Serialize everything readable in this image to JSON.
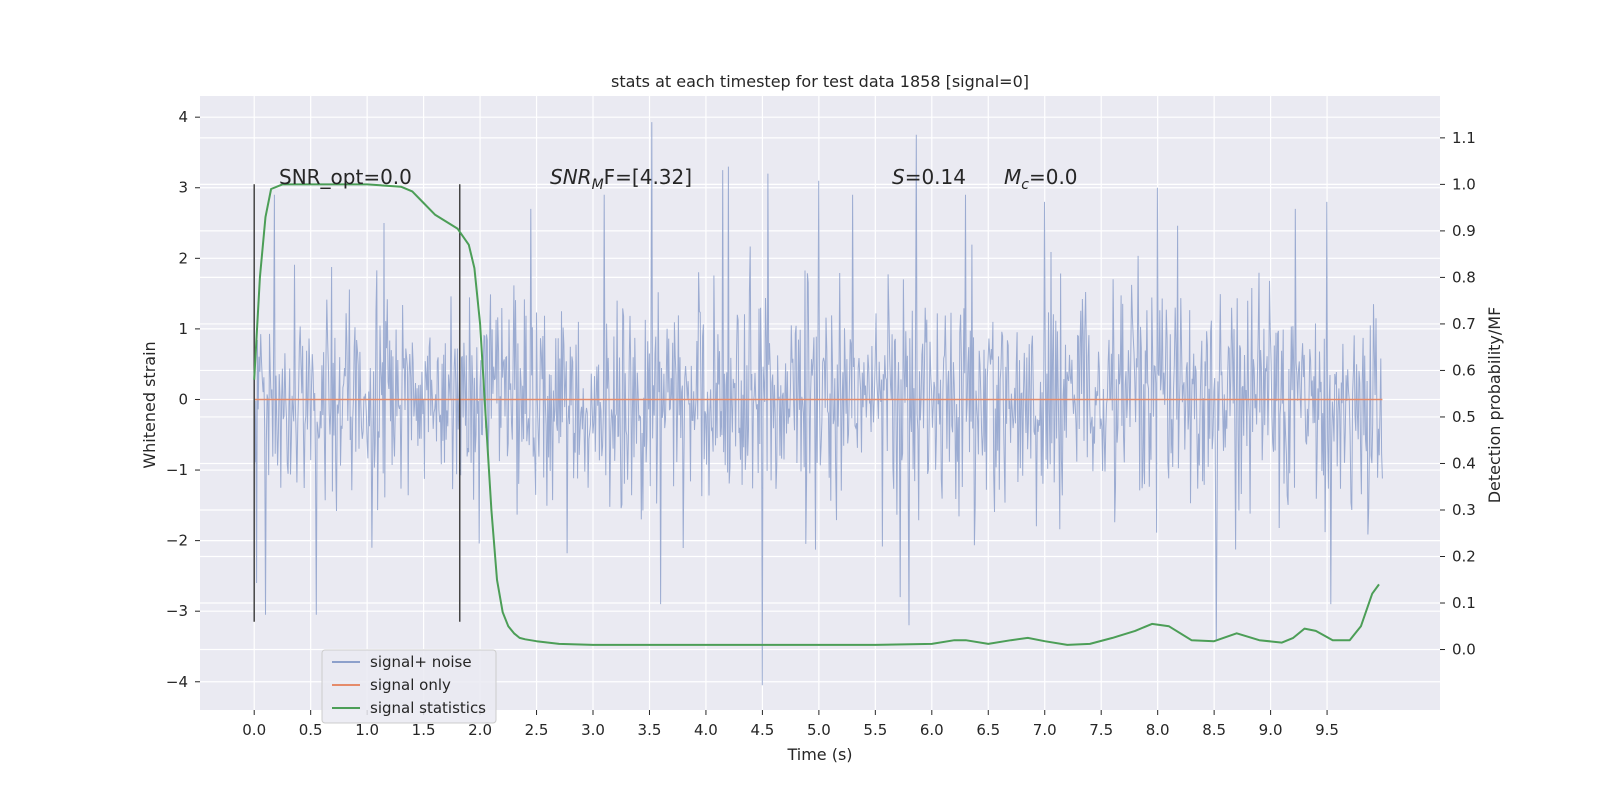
{
  "chart_data": {
    "type": "line",
    "title": "stats at each timestep for test data 1858 [signal=0]",
    "xlabel": "Time (s)",
    "ylabel_left": "Whitened strain",
    "ylabel_right": "Detection probability/MF",
    "xlim": [
      -0.48,
      10.5
    ],
    "ylim_left": [
      -4.4,
      4.3
    ],
    "ylim_right": [
      -0.13,
      1.19
    ],
    "xticks": [
      "0.0",
      "0.5",
      "1.0",
      "1.5",
      "2.0",
      "2.5",
      "3.0",
      "3.5",
      "4.0",
      "4.5",
      "5.0",
      "5.5",
      "6.0",
      "6.5",
      "7.0",
      "7.5",
      "8.0",
      "8.5",
      "9.0",
      "9.5"
    ],
    "yticks_left": [
      "4",
      "3",
      "2",
      "1",
      "0",
      "−1",
      "−2",
      "−3",
      "−4"
    ],
    "yticks_right": [
      "1.1",
      "1.0",
      "0.9",
      "0.8",
      "0.7",
      "0.6",
      "0.5",
      "0.4",
      "0.3",
      "0.2",
      "0.1",
      "0.0"
    ],
    "grid": true,
    "legend_position": "lower-left",
    "annotations": {
      "snr_opt": "SNR_opt=0.0",
      "snr_mf_base": "SNR",
      "snr_mf_sub": "M",
      "snr_mf_rest": "F=[4.32]",
      "s_var": "S",
      "s_value": "=0.14",
      "mc_var": "M",
      "mc_sub": "c",
      "mc_value": "=0.0"
    },
    "vertical_markers": {
      "x": [
        0.0,
        1.82
      ],
      "y_range": [
        -3.15,
        3.05
      ]
    },
    "series": [
      {
        "name": "signal+ noise",
        "axis": "left",
        "color": "#8da0cb",
        "x_range": [
          0.0,
          9.99
        ],
        "typical_range": [
          -1.3,
          1.2
        ],
        "outliers": [
          [
            0.02,
            -2.6
          ],
          [
            0.1,
            -3.05
          ],
          [
            0.18,
            2.9
          ],
          [
            0.55,
            -3.05
          ],
          [
            1.15,
            2.5
          ],
          [
            2.45,
            2.7
          ],
          [
            3.1,
            2.9
          ],
          [
            3.52,
            3.93
          ],
          [
            3.6,
            -2.9
          ],
          [
            4.15,
            3.25
          ],
          [
            4.2,
            3.3
          ],
          [
            4.55,
            3.2
          ],
          [
            4.5,
            -4.05
          ],
          [
            5.0,
            3.1
          ],
          [
            5.3,
            2.9
          ],
          [
            5.72,
            -2.8
          ],
          [
            5.86,
            3.75
          ],
          [
            5.8,
            -3.2
          ],
          [
            6.3,
            2.9
          ],
          [
            7.0,
            2.8
          ],
          [
            8.0,
            3.0
          ],
          [
            8.52,
            -3.4
          ],
          [
            9.22,
            2.7
          ],
          [
            9.5,
            2.8
          ],
          [
            9.53,
            -2.9
          ]
        ]
      },
      {
        "name": "signal only",
        "axis": "left",
        "color": "#e58b6a",
        "x": [
          0.0,
          9.99
        ],
        "y": [
          0.0,
          0.0
        ]
      },
      {
        "name": "signal statistics",
        "axis": "right",
        "color": "#4c9e57",
        "x": [
          0.0,
          0.05,
          0.1,
          0.15,
          0.25,
          0.5,
          0.8,
          1.0,
          1.3,
          1.4,
          1.5,
          1.6,
          1.7,
          1.8,
          1.9,
          1.95,
          2.0,
          2.05,
          2.1,
          2.15,
          2.2,
          2.25,
          2.3,
          2.35,
          2.4,
          2.5,
          2.7,
          3.0,
          3.5,
          4.0,
          4.3,
          4.6,
          5.0,
          5.5,
          6.0,
          6.2,
          6.3,
          6.5,
          6.7,
          6.85,
          7.0,
          7.2,
          7.4,
          7.6,
          7.8,
          7.95,
          8.1,
          8.3,
          8.5,
          8.7,
          8.9,
          9.1,
          9.2,
          9.3,
          9.4,
          9.55,
          9.7,
          9.8,
          9.9,
          9.96
        ],
        "y": [
          0.58,
          0.8,
          0.93,
          0.99,
          1.0,
          1.0,
          1.0,
          1.0,
          0.995,
          0.985,
          0.96,
          0.935,
          0.92,
          0.905,
          0.87,
          0.82,
          0.7,
          0.5,
          0.3,
          0.15,
          0.08,
          0.05,
          0.035,
          0.025,
          0.022,
          0.018,
          0.012,
          0.01,
          0.01,
          0.01,
          0.01,
          0.01,
          0.01,
          0.01,
          0.012,
          0.02,
          0.02,
          0.012,
          0.02,
          0.025,
          0.018,
          0.01,
          0.012,
          0.025,
          0.04,
          0.055,
          0.05,
          0.02,
          0.018,
          0.035,
          0.02,
          0.015,
          0.025,
          0.045,
          0.04,
          0.02,
          0.02,
          0.05,
          0.12,
          0.14
        ]
      }
    ]
  }
}
